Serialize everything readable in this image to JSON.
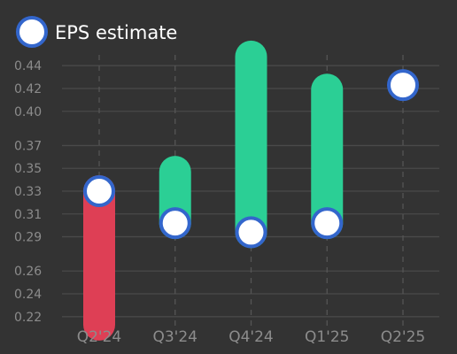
{
  "chart_data": {
    "type": "range-bar",
    "legend": {
      "label": "EPS estimate",
      "placement": "top-left"
    },
    "categories": [
      "Q2'24",
      "Q3'24",
      "Q4'24",
      "Q1'25",
      "Q2'25"
    ],
    "estimate": [
      0.33,
      0.302,
      0.294,
      0.302,
      0.423
    ],
    "actual": [
      0.213,
      0.347,
      0.448,
      0.419,
      null
    ],
    "y_ticks": [
      0.22,
      0.24,
      0.26,
      0.29,
      0.31,
      0.33,
      0.35,
      0.37,
      0.4,
      0.42,
      0.44
    ],
    "y_tick_labels": [
      "0.22",
      "0.24",
      "0.26",
      "0.29",
      "0.31",
      "0.33",
      "0.35",
      "0.37",
      "0.40",
      "0.42",
      "0.44"
    ],
    "ylim": [
      0.209,
      0.451
    ],
    "grid": true,
    "colors": {
      "beat": "#2bcf95",
      "miss": "#de3f55",
      "estimate_fill": "#ffffff",
      "estimate_stroke": "#3366cc",
      "grid": "#4a4a4a",
      "text": "#8c8c8c",
      "background": "#333333"
    }
  }
}
